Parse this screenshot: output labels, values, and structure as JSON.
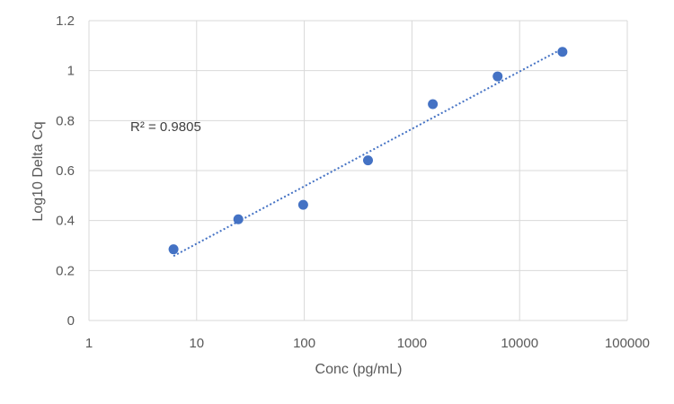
{
  "chart_data": {
    "type": "scatter",
    "title": "",
    "xlabel": "Conc (pg/mL)",
    "ylabel": "Log10 Delta Cq",
    "x_scale": "log",
    "xlim": [
      1,
      100000
    ],
    "ylim": [
      0,
      1.2
    ],
    "x_ticks": [
      1,
      10,
      100,
      1000,
      10000,
      100000
    ],
    "x_tick_labels": [
      "1",
      "10",
      "100",
      "1000",
      "10000",
      "100000"
    ],
    "y_ticks": [
      0,
      0.2,
      0.4,
      0.6,
      0.8,
      1,
      1.2
    ],
    "y_tick_labels": [
      "0",
      "0.2",
      "0.4",
      "0.6",
      "0.8",
      "1",
      "1.2"
    ],
    "grid": true,
    "legend": "none",
    "series": [
      {
        "x": [
          6.1,
          24.4,
          97.7,
          390.6,
          1562.5,
          6250,
          25000
        ],
        "y": [
          0.285,
          0.405,
          0.463,
          0.641,
          0.866,
          0.977,
          1.075
        ],
        "color": "#4472C4"
      }
    ],
    "trendline": {
      "type": "log",
      "style": "dotted",
      "color": "#4472C4",
      "start": [
        6.1,
        0.258
      ],
      "end": [
        25000,
        1.088
      ]
    },
    "annotations": [
      {
        "text": "R² = 0.9805"
      }
    ]
  }
}
